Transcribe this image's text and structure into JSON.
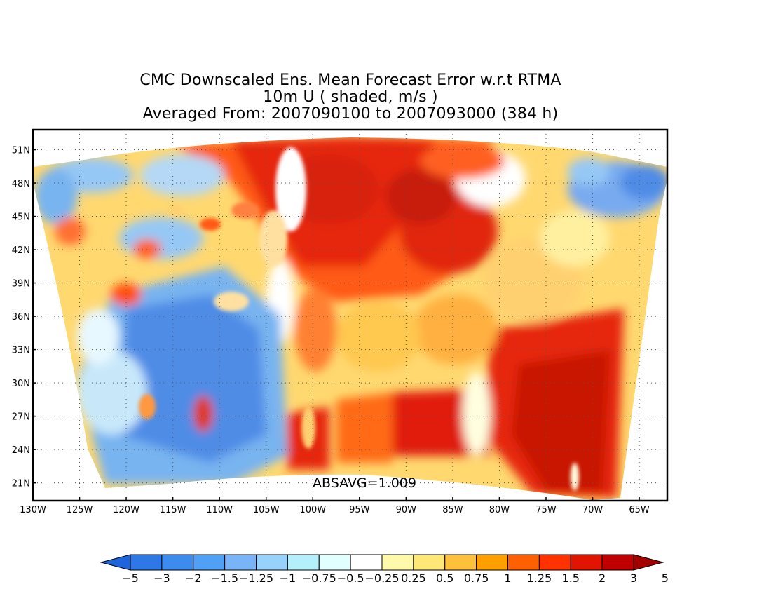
{
  "title": {
    "line1": "CMC Downscaled Ens. Mean Forecast Error w.r.t RTMA",
    "line2": "10m U ( shaded, m/s )",
    "line3": "Averaged From: 2007090100 to 2007093000 (384 h)"
  },
  "map": {
    "lon_range": [
      -130,
      -62
    ],
    "lat_range": [
      19.4,
      52.8
    ],
    "lon_labels": [
      "130W",
      "125W",
      "120W",
      "115W",
      "110W",
      "105W",
      "100W",
      "95W",
      "90W",
      "85W",
      "80W",
      "75W",
      "70W",
      "65W"
    ],
    "lon_values": [
      -130,
      -125,
      -120,
      -115,
      -110,
      -105,
      -100,
      -95,
      -90,
      -85,
      -80,
      -75,
      -70,
      -65
    ],
    "lat_labels": [
      "21N",
      "24N",
      "27N",
      "30N",
      "33N",
      "36N",
      "39N",
      "42N",
      "45N",
      "48N",
      "51N"
    ],
    "lat_values": [
      21,
      24,
      27,
      30,
      33,
      36,
      39,
      42,
      45,
      48,
      51
    ],
    "grid": true,
    "annotation": "ABSAVG=1.009",
    "variable": "10m U forecast error",
    "units": "m/s"
  },
  "colorbar": {
    "labels": [
      "-5",
      "-3",
      "-2",
      "-1.5",
      "-1.25",
      "-1",
      "-0.75",
      "-0.5",
      "-0.25",
      "0.25",
      "0.5",
      "0.75",
      "1",
      "1.25",
      "1.5",
      "2",
      "3",
      "5"
    ],
    "colors": [
      "#1e64dc",
      "#2d78e6",
      "#3c8cf0",
      "#50a0f5",
      "#78b4f7",
      "#96d2fa",
      "#b4f0fa",
      "#e1ffff",
      "#ffffff",
      "#fffaaa",
      "#ffe878",
      "#ffc03c",
      "#ffa000",
      "#ff6000",
      "#ff3200",
      "#e11400",
      "#c00000",
      "#a50000"
    ]
  }
}
